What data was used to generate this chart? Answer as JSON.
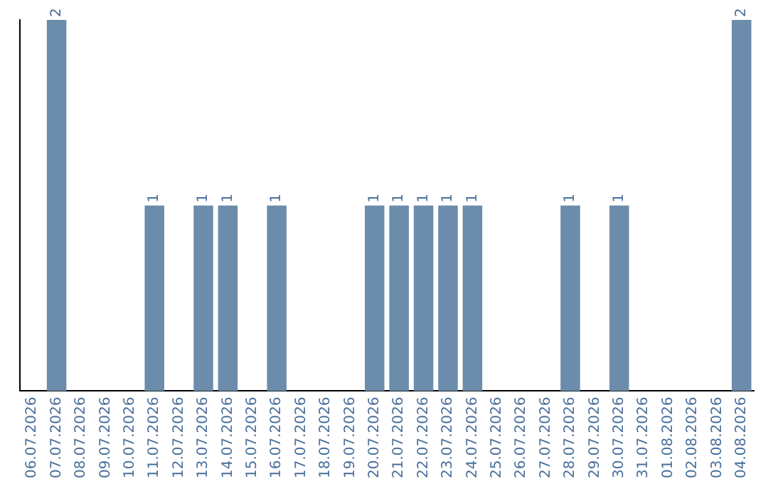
{
  "chart_data": {
    "type": "bar",
    "color": "#6c8cab",
    "data_labels": true,
    "categories": [
      "06.07.2026",
      "07.07.2026",
      "08.07.2026",
      "09.07.2026",
      "10.07.2026",
      "11.07.2026",
      "12.07.2026",
      "13.07.2026",
      "14.07.2026",
      "15.07.2026",
      "16.07.2026",
      "17.07.2026",
      "18.07.2026",
      "19.07.2026",
      "20.07.2026",
      "21.07.2026",
      "22.07.2026",
      "23.07.2026",
      "24.07.2026",
      "25.07.2026",
      "26.07.2026",
      "27.07.2026",
      "28.07.2026",
      "29.07.2026",
      "30.07.2026",
      "31.07.2026",
      "01.08.2026",
      "02.08.2026",
      "03.08.2026",
      "04.08.2026"
    ],
    "values": [
      null,
      2,
      null,
      null,
      null,
      1,
      null,
      1,
      1,
      null,
      1,
      null,
      null,
      null,
      1,
      1,
      1,
      1,
      1,
      null,
      null,
      null,
      1,
      null,
      1,
      null,
      null,
      null,
      null,
      2
    ]
  }
}
